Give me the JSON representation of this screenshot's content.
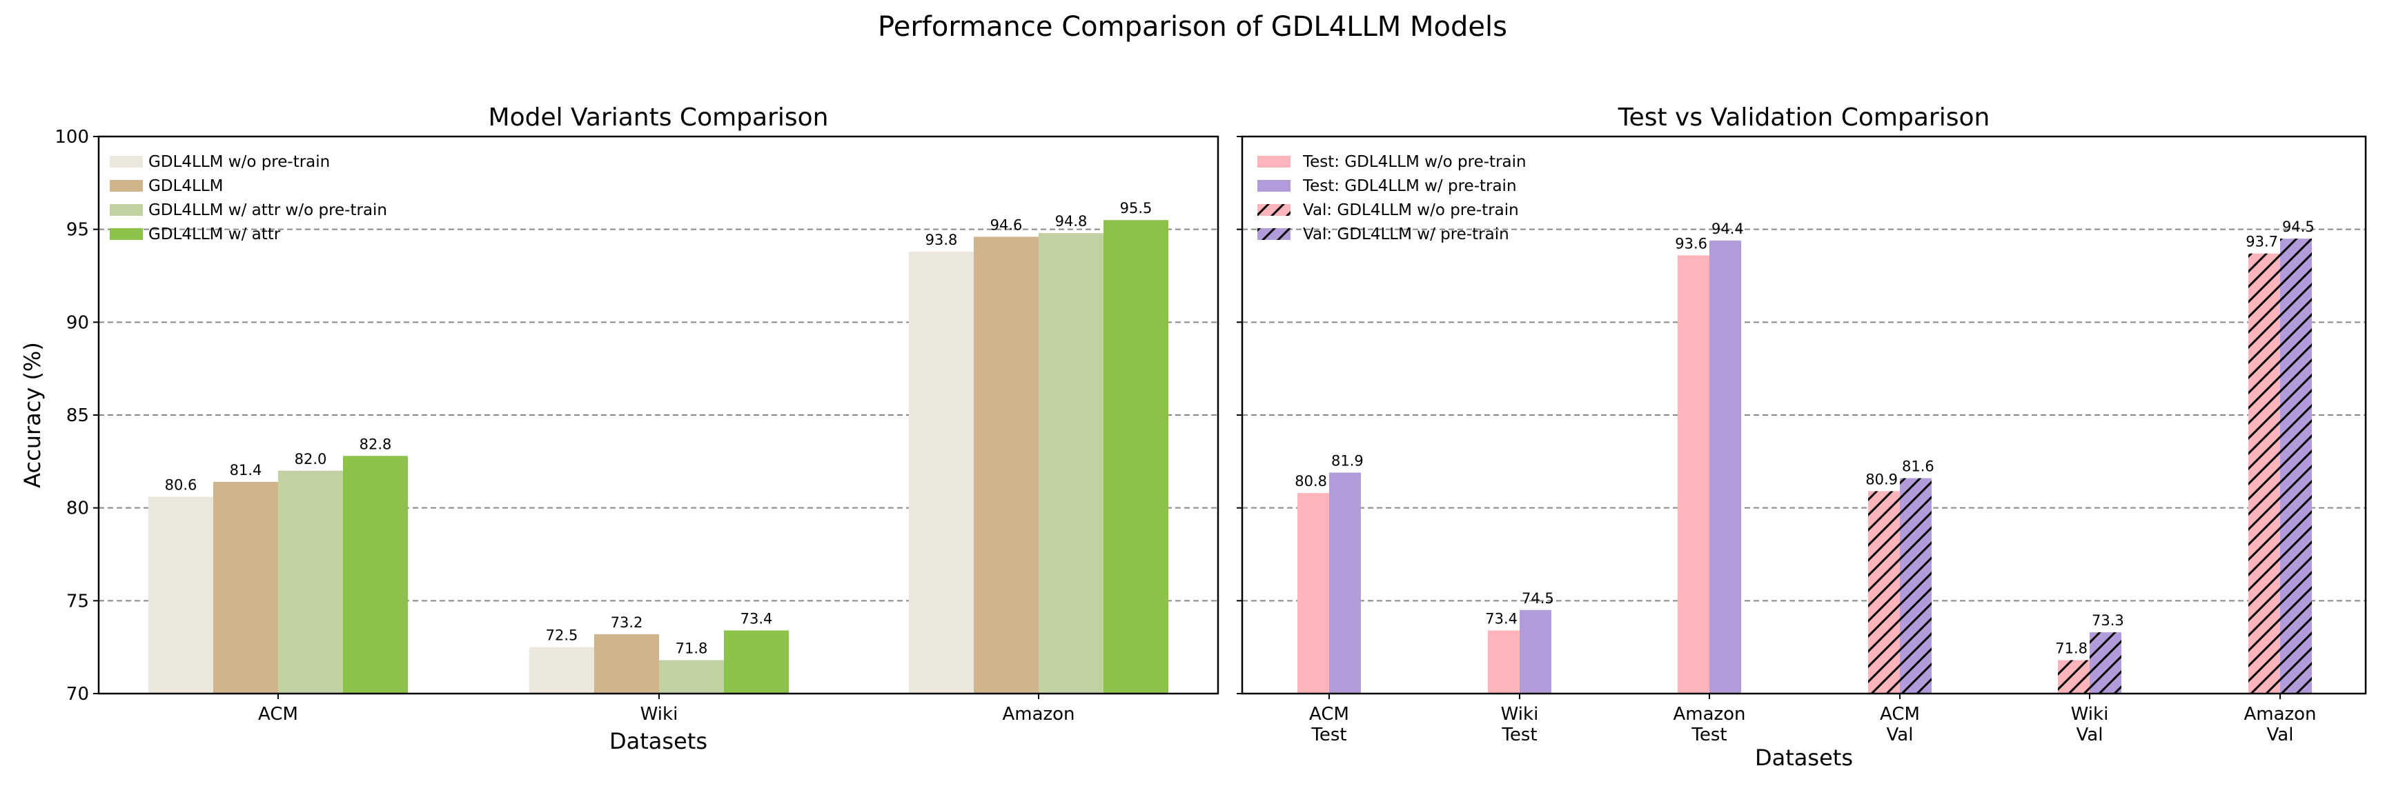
{
  "figure_title": "Performance Comparison of GDL4LLM Models",
  "chart_data": [
    {
      "type": "bar",
      "title": "Model Variants Comparison",
      "xlabel": "Datasets",
      "ylabel": "Accuracy (%)",
      "ylim": [
        70,
        100
      ],
      "yticks": [
        "70",
        "75",
        "80",
        "85",
        "90",
        "95",
        "100"
      ],
      "grid": "y dashed",
      "legend_position": "top-left",
      "categories": [
        "ACM",
        "Wiki",
        "Amazon"
      ],
      "series": [
        {
          "name": "GDL4LLM w/o pre-train",
          "color": "#ebe7dc",
          "values": [
            80.6,
            72.5,
            93.8
          ]
        },
        {
          "name": "GDL4LLM",
          "color": "#d2b48c",
          "values": [
            81.4,
            73.2,
            94.6
          ]
        },
        {
          "name": "GDL4LLM w/ attr w/o pre-train",
          "color": "#c2d1a2",
          "values": [
            82.0,
            71.8,
            94.8
          ]
        },
        {
          "name": "GDL4LLM w/ attr",
          "color": "#8bc34a",
          "values": [
            82.8,
            73.4,
            95.5
          ]
        }
      ]
    },
    {
      "type": "bar",
      "title": "Test vs Validation Comparison",
      "xlabel": "Datasets",
      "ylim": [
        70,
        100
      ],
      "grid": "y dashed",
      "legend_position": "top-right",
      "categories": [
        "ACM\nTest",
        "Wiki\nTest",
        "Amazon\nTest",
        "ACM\nVal",
        "Wiki\nVal",
        "Amazon\nVal"
      ],
      "series": [
        {
          "name": "Test: GDL4LLM w/o pre-train",
          "color": "#ffb3ba",
          "hatch": false,
          "values": [
            80.8,
            73.4,
            93.6,
            null,
            null,
            null
          ]
        },
        {
          "name": "Test: GDL4LLM w/ pre-train",
          "color": "#b19cd9",
          "hatch": false,
          "values": [
            81.9,
            74.5,
            94.4,
            null,
            null,
            null
          ]
        },
        {
          "name": "Val: GDL4LLM w/o pre-train",
          "color": "#ffb3ba",
          "hatch": true,
          "values": [
            null,
            null,
            null,
            80.9,
            71.8,
            93.7
          ]
        },
        {
          "name": "Val: GDL4LLM w/ pre-train",
          "color": "#b19cd9",
          "hatch": true,
          "values": [
            null,
            null,
            null,
            81.6,
            73.3,
            94.5
          ]
        }
      ]
    }
  ]
}
